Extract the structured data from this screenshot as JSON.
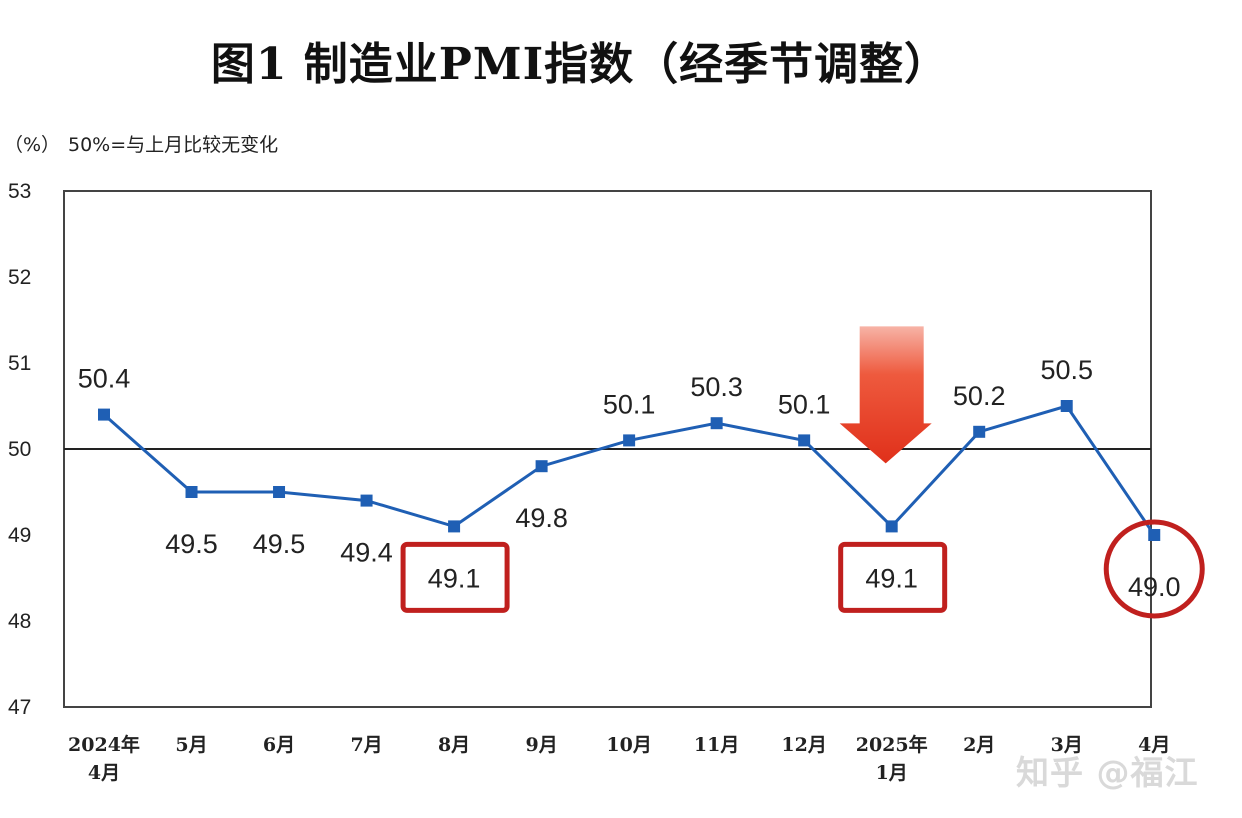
{
  "title": "图1  制造业PMI指数（经季节调整）",
  "unit_label": "（%）",
  "note": "50%=与上月比较无变化",
  "watermark": "知乎 @福江",
  "chart_data": {
    "type": "line",
    "title": "图1  制造业PMI指数（经季节调整）",
    "ylabel": "（%）",
    "ylim": [
      47,
      53
    ],
    "yticks": [
      47,
      48,
      49,
      50,
      51,
      52,
      53
    ],
    "reference_line": 50,
    "grid": false,
    "categories": [
      [
        "2024年",
        "4月"
      ],
      [
        "5月"
      ],
      [
        "6月"
      ],
      [
        "7月"
      ],
      [
        "8月"
      ],
      [
        "9月"
      ],
      [
        "10月"
      ],
      [
        "11月"
      ],
      [
        "12月"
      ],
      [
        "2025年",
        "1月"
      ],
      [
        "2月"
      ],
      [
        "3月"
      ],
      [
        "4月"
      ]
    ],
    "values": [
      50.4,
      49.5,
      49.5,
      49.4,
      49.1,
      49.8,
      50.1,
      50.3,
      50.1,
      49.1,
      50.2,
      50.5,
      49.0
    ],
    "data_labels": [
      "50.4",
      "49.5",
      "49.5",
      "49.4",
      "49.1",
      "49.8",
      "50.1",
      "50.3",
      "50.1",
      "49.1",
      "50.2",
      "50.5",
      "49.0"
    ],
    "label_position": [
      "above",
      "below",
      "below",
      "below",
      "below",
      "below",
      "above",
      "above",
      "above",
      "below",
      "above",
      "above",
      "below"
    ],
    "series_color": "#1f5fb4",
    "annotations": [
      {
        "type": "box",
        "index": 4,
        "color": "#c0201e"
      },
      {
        "type": "box",
        "index": 9,
        "color": "#c0201e"
      },
      {
        "type": "circle",
        "index": 12,
        "color": "#c0201e"
      },
      {
        "type": "arrow-down",
        "index": 9,
        "color": "#e8361c"
      }
    ]
  }
}
